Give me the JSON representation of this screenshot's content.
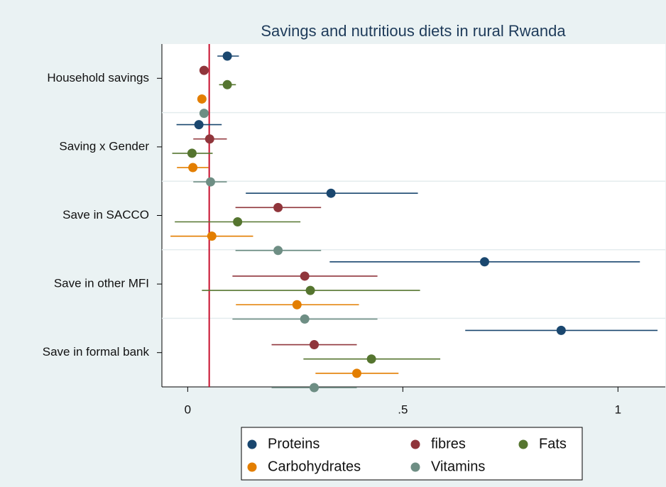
{
  "chart_data": {
    "type": "coefplot",
    "title": "Savings and nutritious diets in rural Rwanda",
    "categories": [
      "Household savings",
      "Saving x Gender",
      "Save in  SACCO",
      "Save in other MFI",
      "Save in formal bank"
    ],
    "series": [
      {
        "name": "Proteins",
        "color": "#1a476f",
        "values": [
          0.092,
          0.026,
          0.333,
          0.69,
          0.868
        ],
        "lower": [
          0.069,
          -0.026,
          0.135,
          0.33,
          0.645
        ],
        "upper": [
          0.119,
          0.079,
          0.535,
          1.051,
          1.092
        ]
      },
      {
        "name": "fibres",
        "color": "#90353b",
        "values": [
          0.038,
          0.051,
          0.21,
          0.272,
          0.294
        ],
        "lower": [
          0.028,
          0.013,
          0.111,
          0.104,
          0.195
        ],
        "upper": [
          0.048,
          0.091,
          0.31,
          0.441,
          0.393
        ]
      },
      {
        "name": "Fats",
        "color": "#55752f",
        "values": [
          0.092,
          0.01,
          0.116,
          0.285,
          0.427
        ],
        "lower": [
          0.073,
          -0.036,
          -0.03,
          0.033,
          0.269
        ],
        "upper": [
          0.112,
          0.058,
          0.262,
          0.54,
          0.587
        ]
      },
      {
        "name": "Carbohydrates",
        "color": "#e37e00",
        "values": [
          0.033,
          0.012,
          0.056,
          0.254,
          0.393
        ],
        "lower": [
          0.023,
          -0.025,
          -0.04,
          0.112,
          0.297
        ],
        "upper": [
          0.043,
          0.048,
          0.152,
          0.398,
          0.49
        ]
      },
      {
        "name": "Vitamins",
        "color": "#6e8e84",
        "values": [
          0.038,
          0.053,
          0.21,
          0.272,
          0.294
        ],
        "lower": [
          0.028,
          0.013,
          0.111,
          0.104,
          0.195
        ],
        "upper": [
          0.048,
          0.091,
          0.31,
          0.441,
          0.393
        ]
      }
    ],
    "xlim": [
      -0.06,
      1.11
    ],
    "xticks": [
      0,
      {
        "value": 0.5,
        "label": ".5"
      },
      1
    ],
    "reference_line": 0.05,
    "reference_color": "#c8102e",
    "legend": "bottom"
  }
}
